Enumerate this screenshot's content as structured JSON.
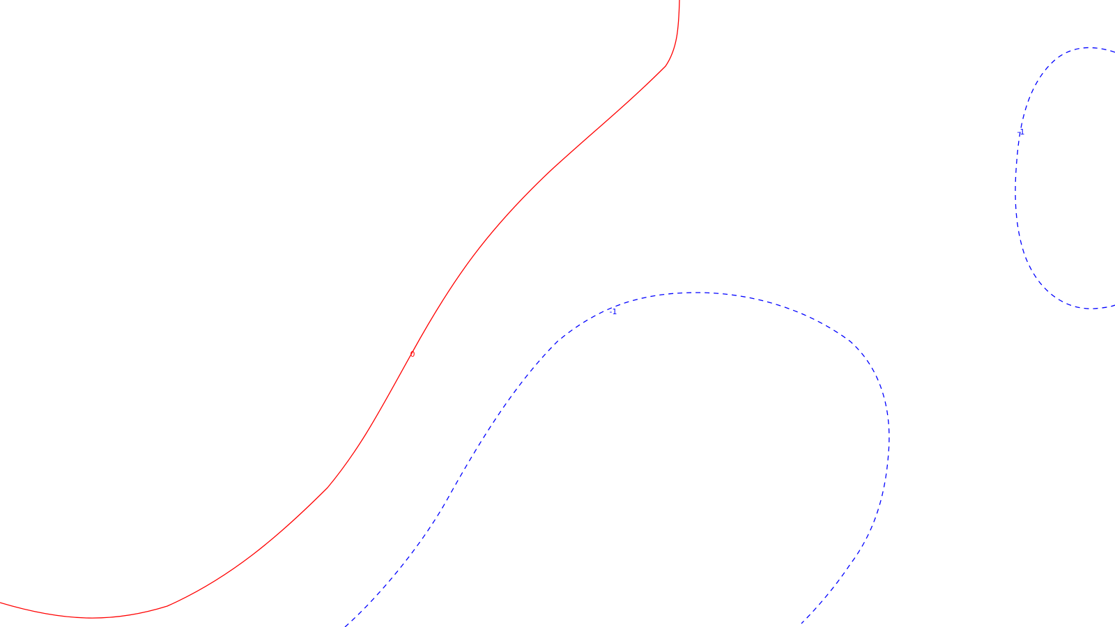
{
  "contours": [
    {
      "level": "0",
      "color": "#ff0000",
      "style": "solid"
    },
    {
      "level": "-1",
      "color": "#0000ff",
      "style": "dashed"
    },
    {
      "level": "-1",
      "color": "#0000ff",
      "style": "dashed"
    }
  ]
}
